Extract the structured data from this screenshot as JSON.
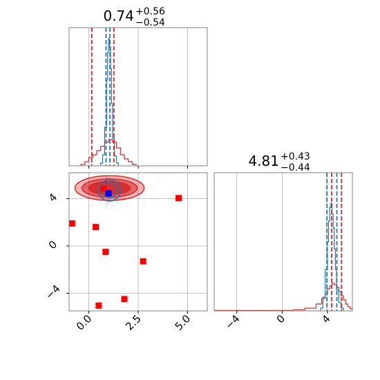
{
  "colors": {
    "blue": "#1f77b4",
    "red": "#d62728",
    "grid": "#b0b0b0",
    "frame": "#808080",
    "marker_red": "#ff0000",
    "marker_blue": "#0000ff"
  },
  "chart_data": [
    {
      "panel": "top-left",
      "type": "histogram",
      "title_value": "0.74",
      "title_plus": "+0.56",
      "title_minus": "−0.54",
      "xlim": [
        -1.0,
        6.0
      ],
      "ylim": [
        0,
        1.0
      ],
      "xticks": [
        0.0,
        2.5,
        5.0
      ],
      "grid": true,
      "series": [
        {
          "color": "red",
          "edges": [
            -0.4,
            -0.2,
            0.0,
            0.2,
            0.4,
            0.6,
            0.8,
            1.0,
            1.2,
            1.4,
            1.6,
            1.8,
            2.0,
            2.2,
            2.4
          ],
          "values": [
            0.01,
            0.03,
            0.06,
            0.08,
            0.11,
            0.14,
            0.17,
            0.19,
            0.17,
            0.13,
            0.08,
            0.05,
            0.03,
            0.01
          ]
        },
        {
          "color": "blue",
          "edges": [
            0.6,
            0.7,
            0.8,
            0.9,
            0.95,
            1.0,
            1.05,
            1.1,
            1.15,
            1.2,
            1.3,
            1.4,
            1.5
          ],
          "values": [
            0.02,
            0.08,
            0.28,
            0.62,
            0.82,
            0.92,
            0.86,
            0.7,
            0.45,
            0.2,
            0.07,
            0.02
          ]
        }
      ],
      "vlines": [
        {
          "x": 0.15,
          "color": "red"
        },
        {
          "x": 0.87,
          "color": "blue"
        },
        {
          "x": 1.07,
          "color": "blue"
        },
        {
          "x": 1.27,
          "color": "red"
        }
      ]
    },
    {
      "panel": "bottom-left",
      "type": "scatter",
      "xlim": [
        -1.0,
        6.0
      ],
      "ylim": [
        -5.5,
        6.2
      ],
      "xticks": [
        0.0,
        2.5,
        5.0
      ],
      "xtick_labels": [
        "0.0",
        "2.5",
        "5.0"
      ],
      "yticks": [
        -4,
        0,
        4
      ],
      "ytick_labels": [
        "−4",
        "0",
        "4"
      ],
      "grid": true,
      "contours": {
        "red": {
          "center": [
            1.05,
            4.9
          ],
          "radii": [
            [
              1.75,
              1.05
            ],
            [
              1.4,
              0.78
            ],
            [
              1.05,
              0.55
            ]
          ]
        },
        "blue": {
          "center": [
            1.05,
            4.7
          ],
          "radii": [
            [
              0.55,
              0.9
            ],
            [
              0.35,
              0.6
            ]
          ]
        }
      },
      "red_points": [
        {
          "x": -0.85,
          "y": 1.9
        },
        {
          "x": 0.35,
          "y": 1.6
        },
        {
          "x": 0.85,
          "y": -0.5
        },
        {
          "x": 2.75,
          "y": -1.3
        },
        {
          "x": 1.8,
          "y": -4.5
        },
        {
          "x": 0.5,
          "y": -5.05
        },
        {
          "x": 4.55,
          "y": 4.05
        },
        {
          "x": 0.75,
          "y": 4.85
        }
      ],
      "blue_points": [
        {
          "x": 1.0,
          "y": 4.45
        }
      ]
    },
    {
      "panel": "bottom-right",
      "type": "histogram",
      "title_value": "4.81",
      "title_plus": "+0.43",
      "title_minus": "−0.44",
      "xlim": [
        -6.0,
        6.2
      ],
      "ylim": [
        0,
        1.0
      ],
      "xticks": [
        -4,
        0,
        4
      ],
      "xtick_labels": [
        "−4",
        "0",
        "4"
      ],
      "grid": true,
      "series": [
        {
          "color": "red",
          "edges": [
            -6.0,
            1.0,
            2.0,
            3.0,
            3.5,
            3.8,
            4.0,
            4.2,
            4.4,
            4.6,
            4.8,
            5.0,
            5.2,
            5.4,
            5.6,
            5.8,
            6.0,
            6.2
          ],
          "values": [
            0.003,
            0.008,
            0.02,
            0.05,
            0.09,
            0.12,
            0.16,
            0.18,
            0.2,
            0.19,
            0.17,
            0.14,
            0.11,
            0.08,
            0.05,
            0.03,
            0.015
          ]
        },
        {
          "color": "blue",
          "edges": [
            3.4,
            3.6,
            3.8,
            4.0,
            4.1,
            4.2,
            4.3,
            4.4,
            4.5,
            4.6,
            4.7,
            4.8,
            5.0,
            5.2,
            5.4
          ],
          "values": [
            0.02,
            0.1,
            0.3,
            0.5,
            0.65,
            0.75,
            0.78,
            0.7,
            0.6,
            0.45,
            0.3,
            0.15,
            0.06,
            0.02
          ]
        }
      ],
      "vlines": [
        {
          "x": 3.95,
          "color": "blue"
        },
        {
          "x": 4.37,
          "color": "red"
        },
        {
          "x": 4.83,
          "color": "blue"
        },
        {
          "x": 5.24,
          "color": "red"
        }
      ]
    }
  ]
}
